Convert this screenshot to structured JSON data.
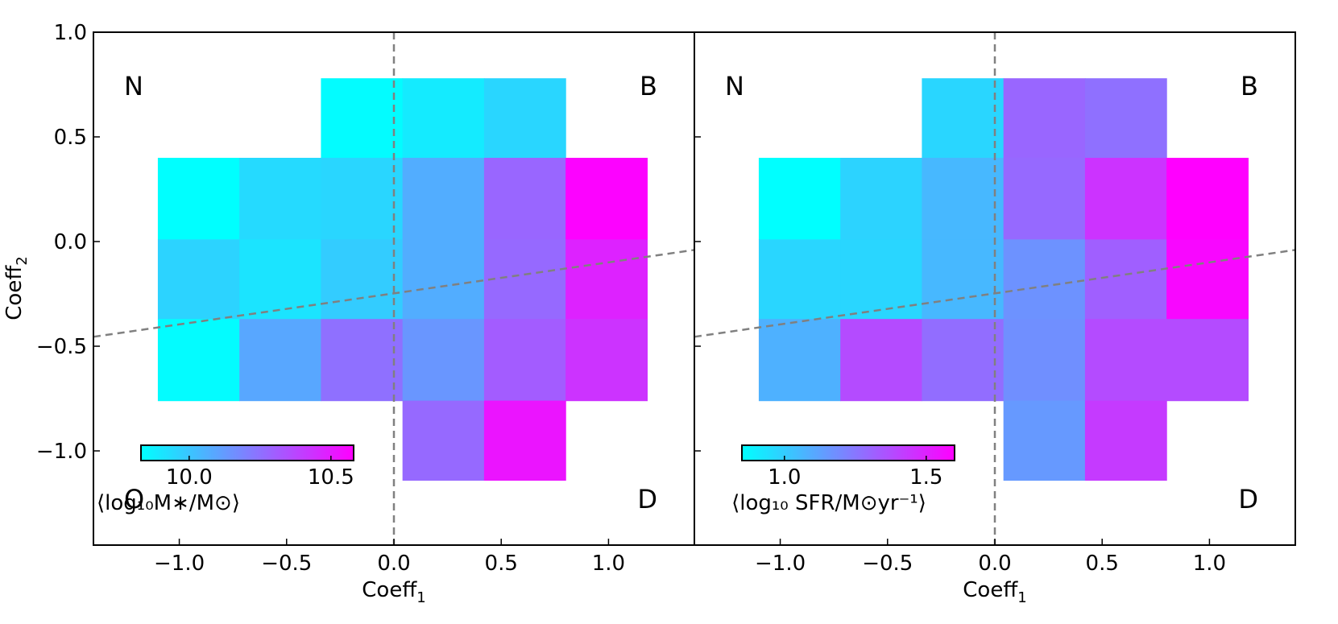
{
  "chart_data": {
    "type": "heatmap",
    "xlabel": "Coeff",
    "xlabel_sub": "1",
    "ylabel": "Coeff",
    "ylabel_sub": "2",
    "xlim": [
      -1.4,
      1.4
    ],
    "ylim": [
      -1.45,
      1.0
    ],
    "x_ticks": [
      -1.0,
      -0.5,
      0.0,
      0.5,
      1.0
    ],
    "x_tick_labels": [
      "−1.0",
      "−0.5",
      "0.0",
      "0.5",
      "1.0"
    ],
    "y_ticks": [
      1.0,
      0.5,
      0.0,
      -0.5,
      -1.0
    ],
    "y_tick_labels": [
      "1.0",
      "0.5",
      "0.0",
      "−0.5",
      "−1.0"
    ],
    "grid": false,
    "x_edges": [
      -1.1,
      -0.72,
      -0.34,
      0.04,
      0.42,
      0.8,
      1.18
    ],
    "y_edges": [
      0.78,
      0.4,
      0.01,
      -0.37,
      -0.76,
      -1.14
    ],
    "vertical_dashed_line_x": 0.0,
    "dividing_line": {
      "x": [
        -1.4,
        1.4
      ],
      "y": [
        -0.455,
        -0.04
      ],
      "style": "dashed",
      "color": "#808080"
    },
    "colormap": [
      "#00ffff",
      "#ff00ff"
    ],
    "corner_labels": {
      "top_left": "N",
      "top_right": "B",
      "bottom_left": "O",
      "bottom_right": "D"
    },
    "panels": [
      {
        "name": "stellar-mass",
        "colorbar_range": [
          9.83,
          10.58
        ],
        "colorbar_ticks": [
          10.0,
          10.5
        ],
        "colorbar_tick_labels": [
          "10.0",
          "10.5"
        ],
        "colorbar_label": "⟨log₁₀M∗/M⊙⟩",
        "show_bottom_left_label": true,
        "show_y_tick_labels": true,
        "cells": [
          {
            "col": 2,
            "row": 0,
            "value": 9.84
          },
          {
            "col": 3,
            "row": 0,
            "value": 9.89
          },
          {
            "col": 4,
            "row": 0,
            "value": 9.95
          },
          {
            "col": 0,
            "row": 1,
            "value": 9.83
          },
          {
            "col": 1,
            "row": 1,
            "value": 9.94
          },
          {
            "col": 2,
            "row": 1,
            "value": 9.95
          },
          {
            "col": 3,
            "row": 1,
            "value": 10.07
          },
          {
            "col": 4,
            "row": 1,
            "value": 10.28
          },
          {
            "col": 5,
            "row": 1,
            "value": 10.57
          },
          {
            "col": 0,
            "row": 2,
            "value": 9.96
          },
          {
            "col": 1,
            "row": 2,
            "value": 9.91
          },
          {
            "col": 2,
            "row": 2,
            "value": 9.98
          },
          {
            "col": 3,
            "row": 2,
            "value": 10.07
          },
          {
            "col": 4,
            "row": 2,
            "value": 10.27
          },
          {
            "col": 5,
            "row": 2,
            "value": 10.48
          },
          {
            "col": 0,
            "row": 3,
            "value": 9.84
          },
          {
            "col": 1,
            "row": 3,
            "value": 10.09
          },
          {
            "col": 2,
            "row": 3,
            "value": 10.25
          },
          {
            "col": 3,
            "row": 3,
            "value": 10.14
          },
          {
            "col": 4,
            "row": 3,
            "value": 10.31
          },
          {
            "col": 5,
            "row": 3,
            "value": 10.43
          },
          {
            "col": 3,
            "row": 4,
            "value": 10.27
          },
          {
            "col": 4,
            "row": 4,
            "value": 10.52
          }
        ]
      },
      {
        "name": "star-formation-rate",
        "colorbar_range": [
          0.85,
          1.6
        ],
        "colorbar_ticks": [
          1.0,
          1.5
        ],
        "colorbar_tick_labels": [
          "1.0",
          "1.5"
        ],
        "colorbar_label": "⟨log₁₀ SFR/M⊙yr⁻¹⟩",
        "show_bottom_left_label": false,
        "show_y_tick_labels": false,
        "cells": [
          {
            "col": 2,
            "row": 0,
            "value": 0.97
          },
          {
            "col": 3,
            "row": 0,
            "value": 1.3
          },
          {
            "col": 4,
            "row": 0,
            "value": 1.27
          },
          {
            "col": 0,
            "row": 1,
            "value": 0.85
          },
          {
            "col": 1,
            "row": 1,
            "value": 0.98
          },
          {
            "col": 2,
            "row": 1,
            "value": 1.06
          },
          {
            "col": 3,
            "row": 1,
            "value": 1.29
          },
          {
            "col": 4,
            "row": 1,
            "value": 1.45
          },
          {
            "col": 5,
            "row": 1,
            "value": 1.6
          },
          {
            "col": 0,
            "row": 2,
            "value": 0.97
          },
          {
            "col": 1,
            "row": 2,
            "value": 0.97
          },
          {
            "col": 2,
            "row": 2,
            "value": 1.06
          },
          {
            "col": 3,
            "row": 2,
            "value": 1.17
          },
          {
            "col": 4,
            "row": 2,
            "value": 1.32
          },
          {
            "col": 5,
            "row": 2,
            "value": 1.58
          },
          {
            "col": 0,
            "row": 3,
            "value": 1.08
          },
          {
            "col": 1,
            "row": 3,
            "value": 1.38
          },
          {
            "col": 2,
            "row": 3,
            "value": 1.28
          },
          {
            "col": 3,
            "row": 3,
            "value": 1.18
          },
          {
            "col": 4,
            "row": 3,
            "value": 1.38
          },
          {
            "col": 5,
            "row": 3,
            "value": 1.38
          },
          {
            "col": 3,
            "row": 4,
            "value": 1.15
          },
          {
            "col": 4,
            "row": 4,
            "value": 1.43
          }
        ]
      }
    ]
  }
}
